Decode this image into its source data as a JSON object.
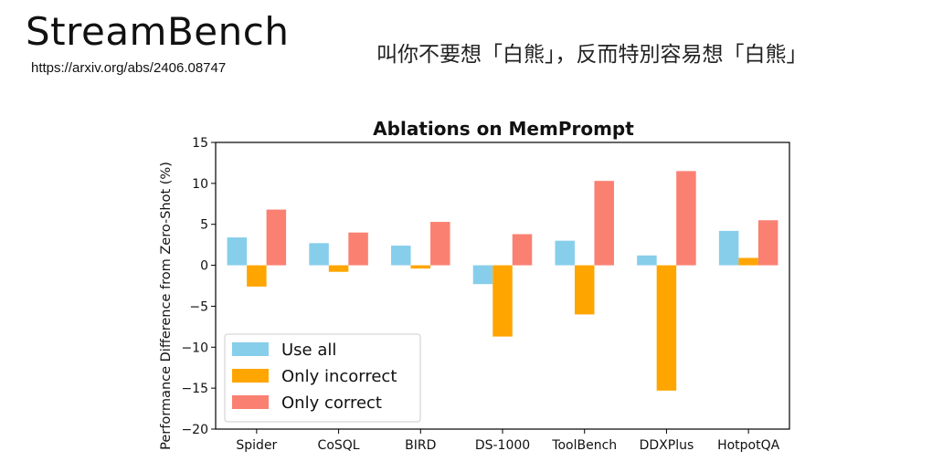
{
  "slide": {
    "title": "StreamBench",
    "url": "https://arxiv.org/abs/2406.08747",
    "quote": "叫你不要想「白熊」，反而特別容易想「白熊」"
  },
  "chart_data": {
    "type": "bar",
    "title": "Ablations on MemPrompt",
    "xlabel": "",
    "ylabel": "Performance Difference from Zero-Shot (%)",
    "ylim": [
      -20,
      15
    ],
    "yticks": [
      15,
      10,
      5,
      0,
      -5,
      -10,
      -15,
      -20
    ],
    "ytick_labels": [
      "15",
      "10",
      "5",
      "0",
      "−5",
      "−10",
      "−15",
      "−20"
    ],
    "categories": [
      "Spider",
      "CoSQL",
      "BIRD",
      "DS-1000",
      "ToolBench",
      "DDXPlus",
      "HotpotQA"
    ],
    "series": [
      {
        "name": "Use all",
        "color": "#87ceeb",
        "values": [
          3.4,
          2.7,
          2.4,
          -2.3,
          3.0,
          1.2,
          4.2
        ]
      },
      {
        "name": "Only incorrect",
        "color": "#ffa500",
        "values": [
          -2.6,
          -0.8,
          -0.4,
          -8.7,
          -6.0,
          -15.3,
          0.9
        ]
      },
      {
        "name": "Only correct",
        "color": "#fa8072",
        "values": [
          6.8,
          4.0,
          5.3,
          3.8,
          10.3,
          11.5,
          5.5
        ]
      }
    ],
    "legend_position": "lower-left",
    "grid": false
  }
}
